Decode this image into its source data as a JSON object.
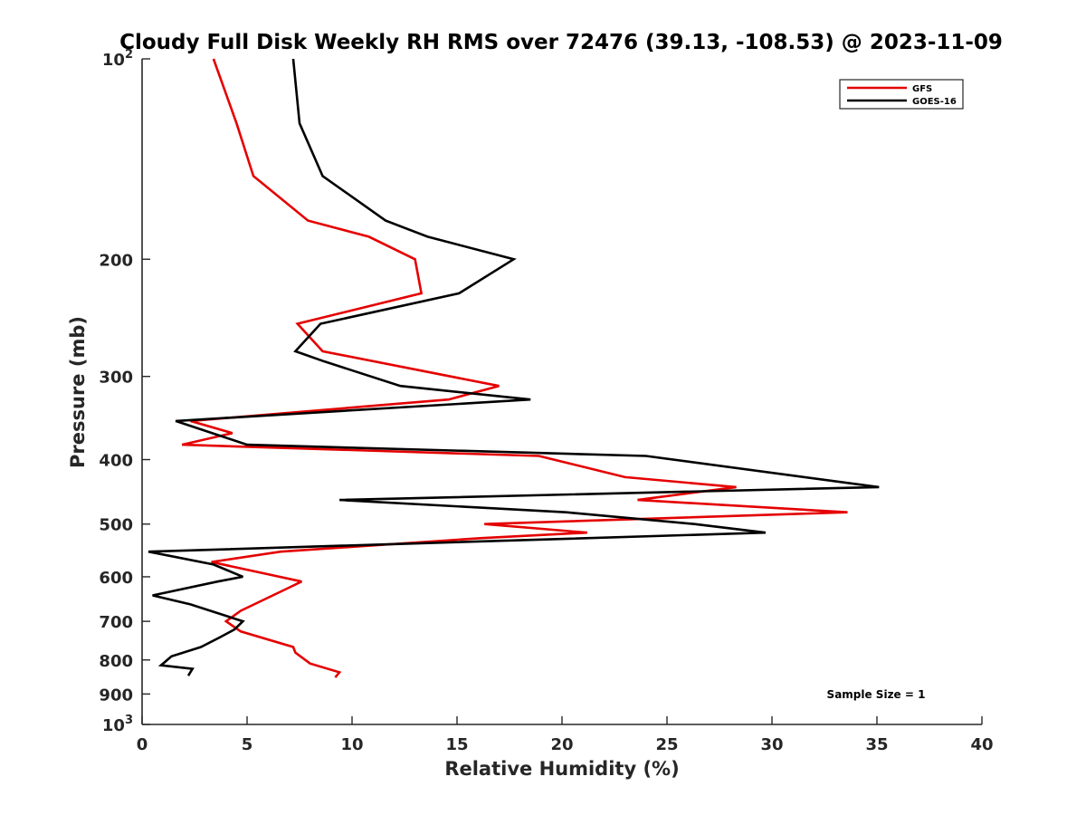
{
  "chart_data": {
    "type": "line",
    "title": "Cloudy Full Disk Weekly RH RMS over 72476 (39.13, -108.53) @ 2023-11-09",
    "xlabel": "Relative Humidity (%)",
    "ylabel": "Pressure (mb)",
    "xlim": [
      0,
      40
    ],
    "ylim": [
      1000,
      100
    ],
    "y_scale": "log",
    "y_reversed": true,
    "grid": false,
    "legend_position": "top-right",
    "x_ticks": [
      0,
      5,
      10,
      15,
      20,
      25,
      30,
      35,
      40
    ],
    "y_ticks": [
      {
        "value": 100,
        "label": "10",
        "sup": "2"
      },
      {
        "value": 200,
        "label": "200"
      },
      {
        "value": 300,
        "label": "300"
      },
      {
        "value": 400,
        "label": "400"
      },
      {
        "value": 500,
        "label": "500"
      },
      {
        "value": 600,
        "label": "600"
      },
      {
        "value": 700,
        "label": "700"
      },
      {
        "value": 800,
        "label": "800"
      },
      {
        "value": 900,
        "label": "900"
      },
      {
        "value": 1000,
        "label": "10",
        "sup": "3"
      }
    ],
    "series": [
      {
        "name": "GFS",
        "color": "#e50000",
        "points": [
          {
            "x": 3.4,
            "y": 100
          },
          {
            "x": 4.5,
            "y": 125
          },
          {
            "x": 5.3,
            "y": 150
          },
          {
            "x": 7.9,
            "y": 175
          },
          {
            "x": 10.8,
            "y": 185
          },
          {
            "x": 13.0,
            "y": 200
          },
          {
            "x": 13.3,
            "y": 225
          },
          {
            "x": 7.4,
            "y": 250
          },
          {
            "x": 8.6,
            "y": 275
          },
          {
            "x": 17.0,
            "y": 310
          },
          {
            "x": 14.6,
            "y": 325
          },
          {
            "x": 2.3,
            "y": 350
          },
          {
            "x": 4.3,
            "y": 365
          },
          {
            "x": 1.9,
            "y": 380
          },
          {
            "x": 18.9,
            "y": 395
          },
          {
            "x": 23.0,
            "y": 425
          },
          {
            "x": 28.3,
            "y": 440
          },
          {
            "x": 23.6,
            "y": 460
          },
          {
            "x": 33.6,
            "y": 480
          },
          {
            "x": 16.3,
            "y": 500
          },
          {
            "x": 21.2,
            "y": 515
          },
          {
            "x": 16.1,
            "y": 525
          },
          {
            "x": 6.6,
            "y": 550
          },
          {
            "x": 3.3,
            "y": 570
          },
          {
            "x": 7.6,
            "y": 610
          },
          {
            "x": 6.9,
            "y": 625
          },
          {
            "x": 4.7,
            "y": 675
          },
          {
            "x": 4.0,
            "y": 700
          },
          {
            "x": 4.7,
            "y": 725
          },
          {
            "x": 7.2,
            "y": 765
          },
          {
            "x": 7.3,
            "y": 780
          },
          {
            "x": 8.0,
            "y": 810
          },
          {
            "x": 9.4,
            "y": 835
          },
          {
            "x": 9.2,
            "y": 850
          }
        ]
      },
      {
        "name": "GOES-16",
        "color": "#000000",
        "points": [
          {
            "x": 7.2,
            "y": 100
          },
          {
            "x": 7.5,
            "y": 125
          },
          {
            "x": 8.6,
            "y": 150
          },
          {
            "x": 11.6,
            "y": 175
          },
          {
            "x": 13.6,
            "y": 185
          },
          {
            "x": 17.7,
            "y": 200
          },
          {
            "x": 15.1,
            "y": 225
          },
          {
            "x": 8.5,
            "y": 250
          },
          {
            "x": 7.3,
            "y": 275
          },
          {
            "x": 8.7,
            "y": 285
          },
          {
            "x": 12.3,
            "y": 310
          },
          {
            "x": 18.5,
            "y": 325
          },
          {
            "x": 1.6,
            "y": 350
          },
          {
            "x": 5.0,
            "y": 380
          },
          {
            "x": 24.0,
            "y": 395
          },
          {
            "x": 35.1,
            "y": 440
          },
          {
            "x": 9.4,
            "y": 460
          },
          {
            "x": 20.2,
            "y": 480
          },
          {
            "x": 26.3,
            "y": 500
          },
          {
            "x": 29.7,
            "y": 515
          },
          {
            "x": 0.3,
            "y": 550
          },
          {
            "x": 3.4,
            "y": 575
          },
          {
            "x": 4.8,
            "y": 600
          },
          {
            "x": 3.6,
            "y": 610
          },
          {
            "x": 0.5,
            "y": 640
          },
          {
            "x": 2.3,
            "y": 660
          },
          {
            "x": 4.8,
            "y": 700
          },
          {
            "x": 4.4,
            "y": 720
          },
          {
            "x": 3.7,
            "y": 740
          },
          {
            "x": 2.8,
            "y": 765
          },
          {
            "x": 1.4,
            "y": 790
          },
          {
            "x": 0.9,
            "y": 815
          },
          {
            "x": 2.4,
            "y": 825
          },
          {
            "x": 2.2,
            "y": 845
          }
        ]
      }
    ],
    "annotation": "Sample Size = 1"
  }
}
